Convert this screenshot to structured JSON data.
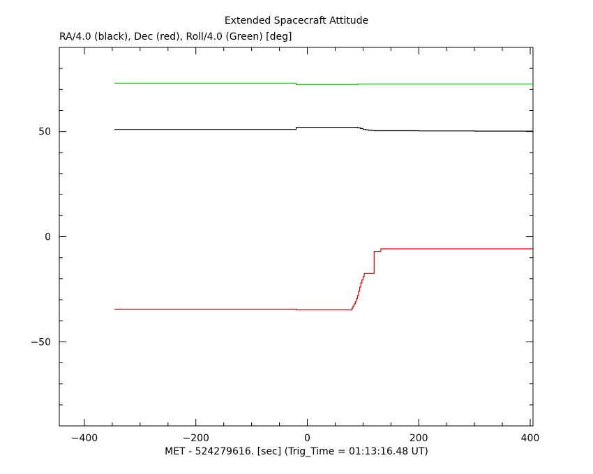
{
  "chart_data": {
    "type": "line",
    "title": "Extended Spacecraft Attitude",
    "subtitle": "RA/4.0 (black), Dec (red), Roll/4.0 (Green) [deg]",
    "xlabel": "MET - 524279616. [sec] (Trig_Time = 01:13:16.48 UT)",
    "ylabel": "",
    "xlim": [
      -445,
      405
    ],
    "ylim": [
      -90,
      90
    ],
    "x_ticks": [
      -400,
      -200,
      0,
      200,
      400
    ],
    "x_tick_labels": [
      "-400",
      "-200",
      "0",
      "200",
      "400"
    ],
    "y_ticks": [
      -50,
      0,
      50
    ],
    "y_tick_labels": [
      "-50",
      "0",
      "50"
    ],
    "x_minor_step": 50,
    "y_minor_step": 10,
    "grid": false,
    "legend": "none",
    "series": [
      {
        "color": "#00cc00",
        "step": true,
        "x": [
          -346,
          -20,
          -20,
          90,
          90,
          405
        ],
        "y": [
          73.0,
          73.0,
          72.3,
          72.3,
          72.6,
          72.6
        ]
      },
      {
        "color": "#000000",
        "step": true,
        "x": [
          -346,
          -20,
          -20,
          88,
          90,
          95,
          100,
          105,
          110,
          115,
          120,
          200,
          300,
          405
        ],
        "y": [
          51.0,
          51.0,
          52.0,
          52.0,
          51.8,
          51.4,
          51.0,
          50.8,
          50.6,
          50.5,
          50.4,
          50.3,
          50.2,
          50.2
        ]
      },
      {
        "color": "#cc0000",
        "step": true,
        "x": [
          -346,
          -20,
          -20,
          78,
          80,
          82,
          84,
          86,
          88,
          90,
          92,
          94,
          96,
          98,
          100,
          102,
          104,
          106,
          108,
          110,
          112,
          114,
          116,
          118,
          120,
          122,
          124,
          126,
          128,
          130,
          132,
          134,
          405
        ],
        "y": [
          -34.5,
          -34.5,
          -34.8,
          -34.8,
          -34.0,
          -33.0,
          -32.0,
          -31.0,
          -29.5,
          -28.0,
          -26.0,
          -24.0,
          -22.0,
          -20.5,
          -19.0,
          -17.5,
          -17.5,
          -17.5,
          -17.5,
          -17.5,
          -17.5,
          -17.5,
          -17.5,
          -17.5,
          -7.0,
          -7.0,
          -7.0,
          -7.0,
          -7.0,
          -7.0,
          -5.8,
          -5.8,
          -5.8
        ]
      }
    ]
  }
}
